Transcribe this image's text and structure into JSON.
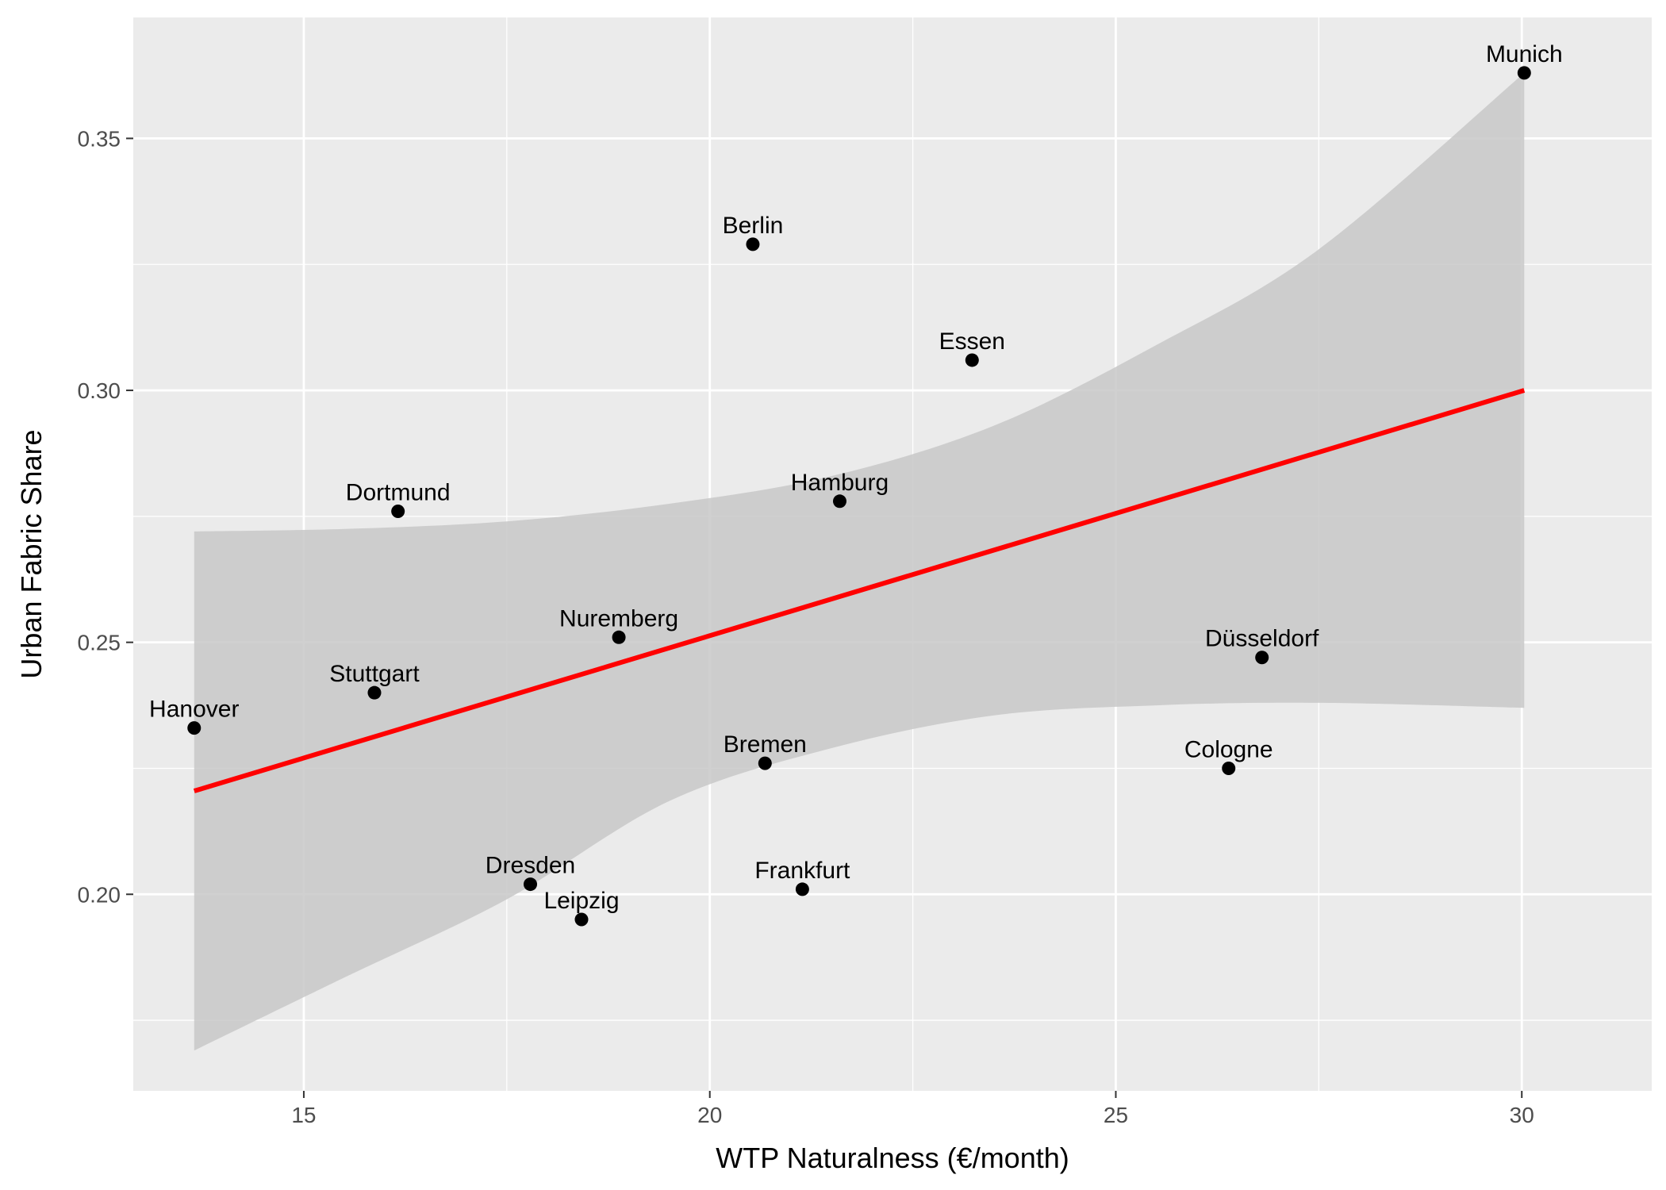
{
  "chart_data": {
    "type": "scatter",
    "xlabel": "WTP Naturalness (€/month)",
    "ylabel": "Urban Fabric Share",
    "xlim": [
      12.9,
      31.6
    ],
    "ylim": [
      0.161,
      0.374
    ],
    "x_ticks": [
      15,
      20,
      25,
      30
    ],
    "x_tick_labels": [
      "15",
      "20",
      "25",
      "30"
    ],
    "y_ticks": [
      0.2,
      0.25,
      0.3,
      0.35
    ],
    "y_tick_labels": [
      "0.20",
      "0.25",
      "0.30",
      "0.35"
    ],
    "grid": true,
    "points": [
      {
        "label": "Munich",
        "x": 30.03,
        "y": 0.363
      },
      {
        "label": "Berlin",
        "x": 20.53,
        "y": 0.329
      },
      {
        "label": "Essen",
        "x": 23.23,
        "y": 0.306
      },
      {
        "label": "Dortmund",
        "x": 16.16,
        "y": 0.276
      },
      {
        "label": "Hamburg",
        "x": 21.6,
        "y": 0.278
      },
      {
        "label": "Nuremberg",
        "x": 18.88,
        "y": 0.251
      },
      {
        "label": "Düsseldorf",
        "x": 26.8,
        "y": 0.247
      },
      {
        "label": "Stuttgart",
        "x": 15.87,
        "y": 0.24
      },
      {
        "label": "Hanover",
        "x": 13.65,
        "y": 0.233
      },
      {
        "label": "Bremen",
        "x": 20.68,
        "y": 0.226
      },
      {
        "label": "Cologne",
        "x": 26.39,
        "y": 0.225
      },
      {
        "label": "Dresden",
        "x": 17.79,
        "y": 0.202
      },
      {
        "label": "Frankfurt",
        "x": 21.14,
        "y": 0.201
      },
      {
        "label": "Leipzig",
        "x": 18.42,
        "y": 0.195
      }
    ],
    "regression_line": {
      "x": [
        13.65,
        30.03
      ],
      "y": [
        0.2205,
        0.3
      ]
    },
    "confidence_band": {
      "x": [
        13.65,
        15.5,
        17.5,
        19.5,
        21.5,
        23.5,
        25.5,
        27.5,
        30.03
      ],
      "upper": [
        0.272,
        0.2725,
        0.274,
        0.2775,
        0.283,
        0.293,
        0.309,
        0.328,
        0.363
      ],
      "lower": [
        0.169,
        0.1835,
        0.199,
        0.2185,
        0.229,
        0.2355,
        0.2375,
        0.238,
        0.237
      ]
    },
    "colors": {
      "panel": "#ebebeb",
      "grid": "#ffffff",
      "band": "#c8c8c8",
      "line": "#ff0000",
      "point": "#000000"
    }
  }
}
